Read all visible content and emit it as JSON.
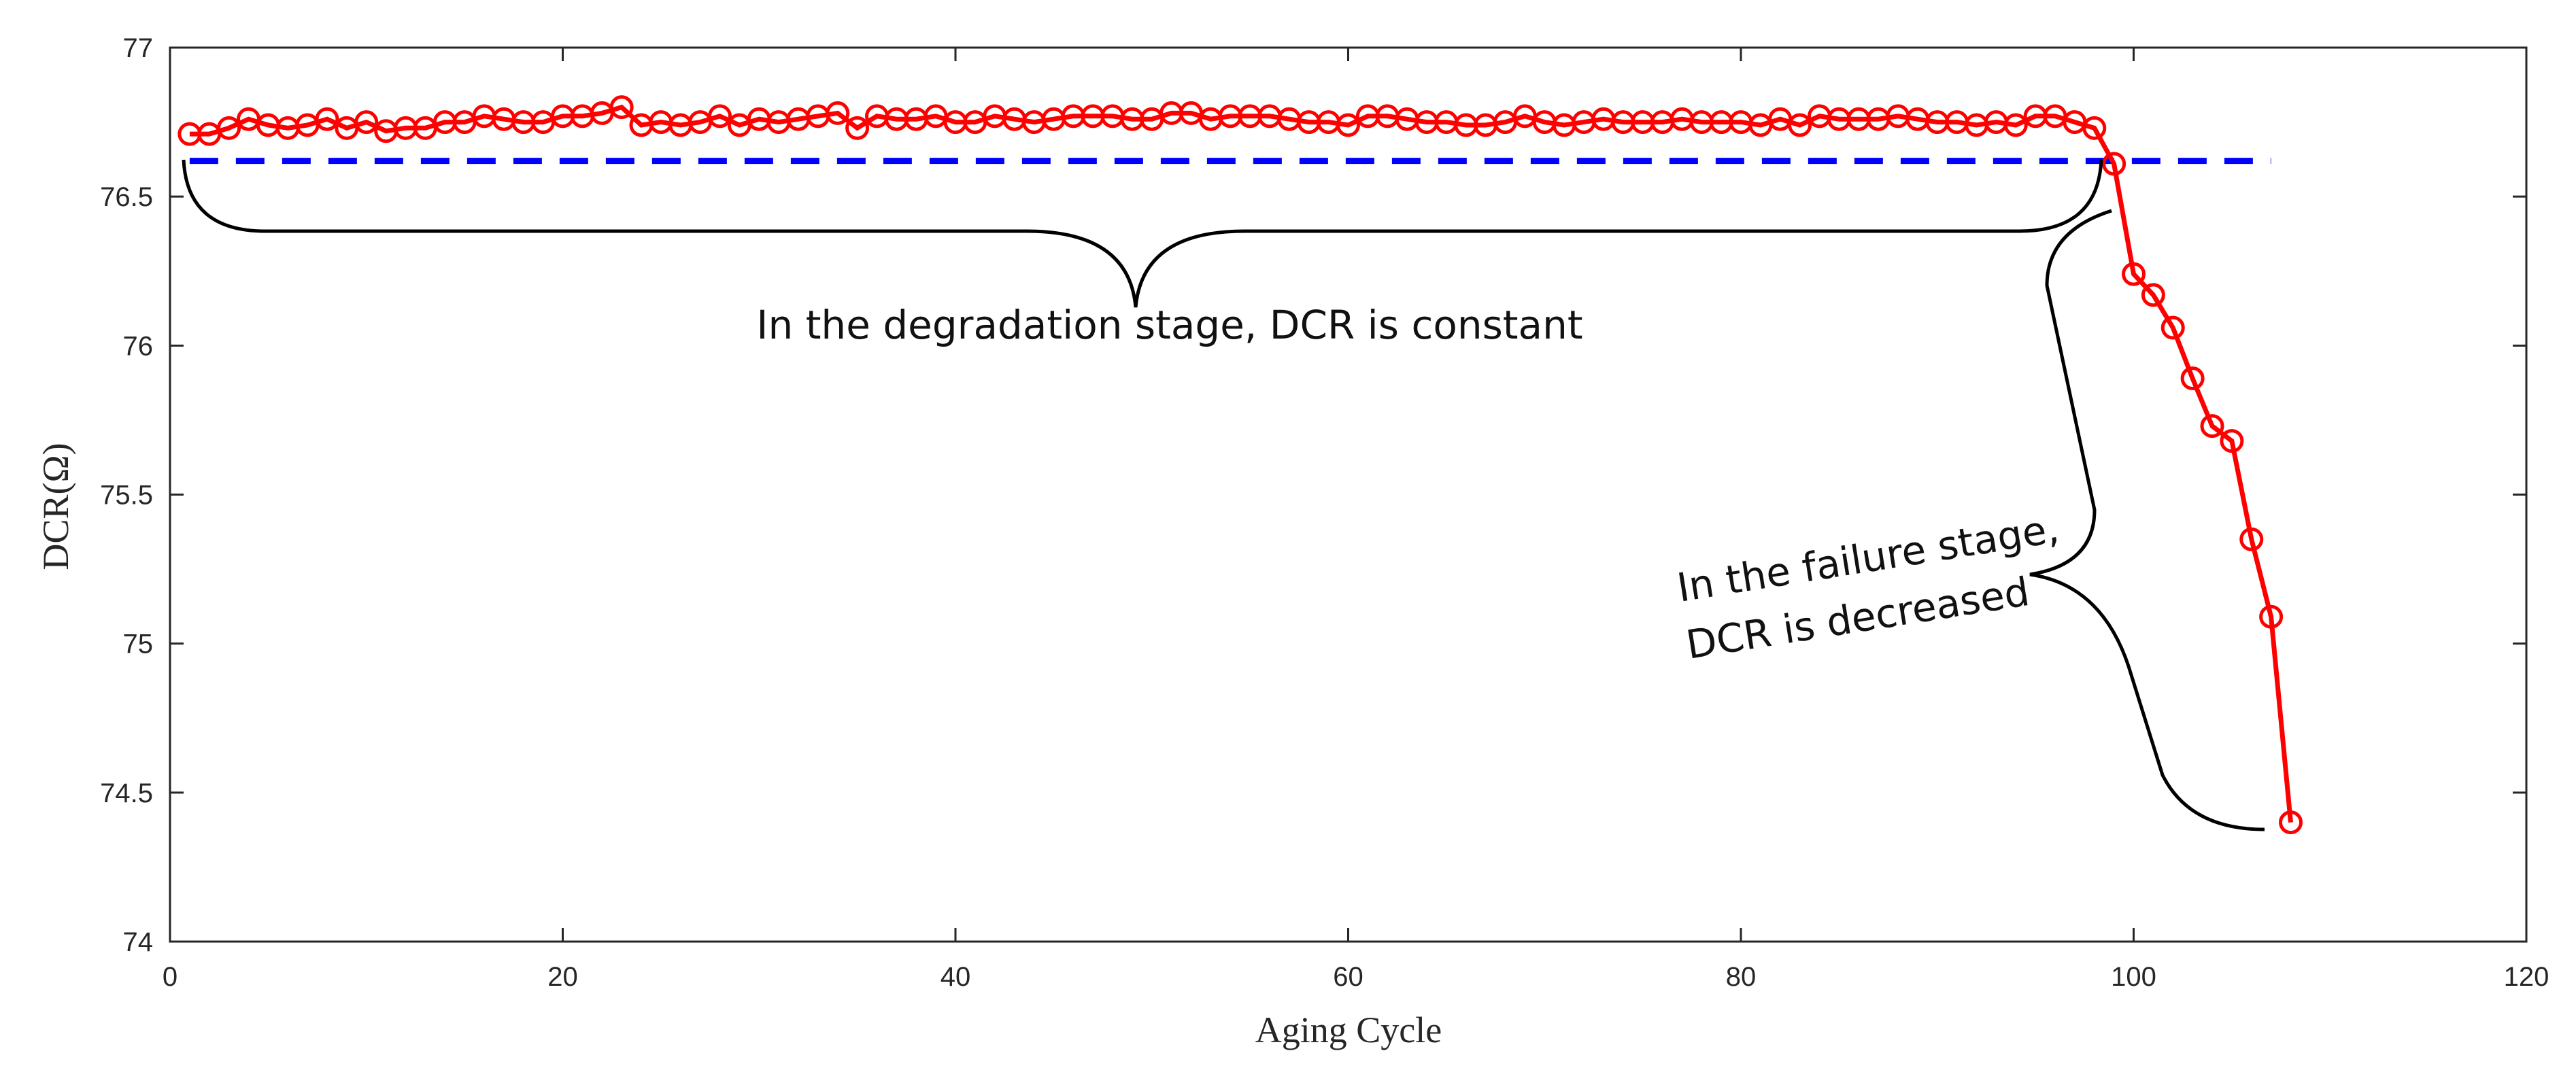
{
  "chart_data": {
    "type": "line",
    "title": "",
    "xlabel": "Aging Cycle",
    "ylabel": "DCR(Ω)",
    "xlim": [
      0,
      120
    ],
    "ylim": [
      74,
      77
    ],
    "xticks": [
      0,
      20,
      40,
      60,
      80,
      100,
      120
    ],
    "yticks": [
      74,
      74.5,
      75,
      75.5,
      76,
      76.5,
      77
    ],
    "xtick_labels": [
      "0",
      "20",
      "40",
      "60",
      "80",
      "100",
      "120"
    ],
    "ytick_labels": [
      "74",
      "74.5",
      "75",
      "75.5",
      "76",
      "76.5",
      "77"
    ],
    "colors": {
      "series": "#ff0000",
      "reference": "#0000ff",
      "axis": "#262626",
      "brace": "#000000"
    },
    "series": [
      {
        "name": "DCR",
        "marker": "circle",
        "x": [
          1,
          2,
          3,
          4,
          5,
          6,
          7,
          8,
          9,
          10,
          11,
          12,
          13,
          14,
          15,
          16,
          17,
          18,
          19,
          20,
          21,
          22,
          23,
          24,
          25,
          26,
          27,
          28,
          29,
          30,
          31,
          32,
          33,
          34,
          35,
          36,
          37,
          38,
          39,
          40,
          41,
          42,
          43,
          44,
          45,
          46,
          47,
          48,
          49,
          50,
          51,
          52,
          53,
          54,
          55,
          56,
          57,
          58,
          59,
          60,
          61,
          62,
          63,
          64,
          65,
          66,
          67,
          68,
          69,
          70,
          71,
          72,
          73,
          74,
          75,
          76,
          77,
          78,
          79,
          80,
          81,
          82,
          83,
          84,
          85,
          86,
          87,
          88,
          89,
          90,
          91,
          92,
          93,
          94,
          95,
          96,
          97,
          98,
          99,
          100,
          101,
          102,
          103,
          104,
          105,
          106,
          107,
          108
        ],
        "values": [
          76.71,
          76.71,
          76.73,
          76.76,
          76.74,
          76.73,
          76.74,
          76.76,
          76.73,
          76.75,
          76.72,
          76.73,
          76.73,
          76.75,
          76.75,
          76.77,
          76.76,
          76.75,
          76.75,
          76.77,
          76.77,
          76.78,
          76.8,
          76.74,
          76.75,
          76.74,
          76.75,
          76.77,
          76.74,
          76.76,
          76.75,
          76.76,
          76.77,
          76.78,
          76.73,
          76.77,
          76.76,
          76.76,
          76.77,
          76.75,
          76.75,
          76.77,
          76.76,
          76.75,
          76.76,
          76.77,
          76.77,
          76.77,
          76.76,
          76.76,
          76.78,
          76.78,
          76.76,
          76.77,
          76.77,
          76.77,
          76.76,
          76.75,
          76.75,
          76.74,
          76.77,
          76.77,
          76.76,
          76.75,
          76.75,
          76.74,
          76.74,
          76.75,
          76.77,
          76.75,
          76.74,
          76.75,
          76.76,
          76.75,
          76.75,
          76.75,
          76.76,
          76.75,
          76.75,
          76.75,
          76.74,
          76.76,
          76.74,
          76.77,
          76.76,
          76.76,
          76.76,
          76.77,
          76.76,
          76.75,
          76.75,
          76.74,
          76.75,
          76.74,
          76.77,
          76.77,
          76.75,
          76.73,
          76.61,
          76.24,
          76.17,
          76.06,
          75.89,
          75.73,
          75.68,
          75.35,
          75.09,
          74.4
        ]
      },
      {
        "name": "reference",
        "style": "dashed",
        "x": [
          1,
          107
        ],
        "values": [
          76.62,
          76.62
        ]
      }
    ],
    "annotations": [
      {
        "text": "In the degradation stage, DCR is constant"
      },
      {
        "text_lines": [
          "In the failure stage,",
          "DCR is decreased"
        ]
      }
    ]
  }
}
